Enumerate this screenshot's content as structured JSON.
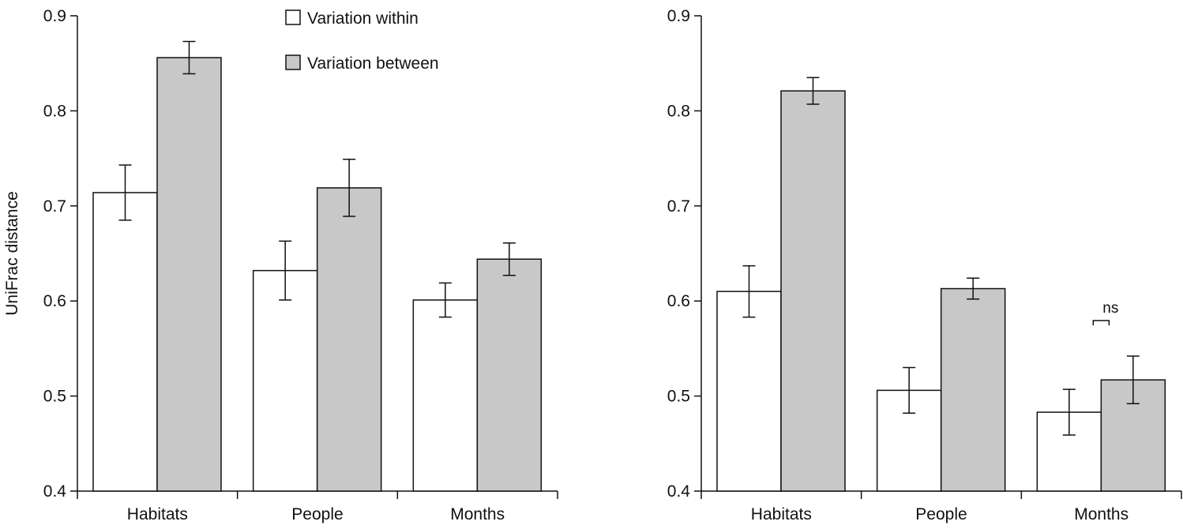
{
  "chart_data": [
    {
      "type": "bar",
      "categories": [
        "Habitats",
        "People",
        "Months"
      ],
      "series": [
        {
          "name": "Variation within",
          "values": [
            0.714,
            0.632,
            0.601
          ],
          "errors": [
            0.029,
            0.031,
            0.018
          ]
        },
        {
          "name": "Variation between",
          "values": [
            0.856,
            0.719,
            0.644
          ],
          "errors": [
            0.017,
            0.03,
            0.017
          ]
        }
      ],
      "ylabel": "UniFrac distance",
      "ylim": [
        0.4,
        0.9
      ],
      "yticks": [
        "0.4",
        "0.5",
        "0.6",
        "0.7",
        "0.8",
        "0.9"
      ],
      "legend": "top-right",
      "grid": false
    },
    {
      "type": "bar",
      "categories": [
        "Habitats",
        "People",
        "Months"
      ],
      "series": [
        {
          "name": "Variation within",
          "values": [
            0.61,
            0.506,
            0.483
          ],
          "errors": [
            0.027,
            0.024,
            0.024
          ]
        },
        {
          "name": "Variation between",
          "values": [
            0.821,
            0.613,
            0.517
          ],
          "errors": [
            0.014,
            0.011,
            0.025
          ]
        }
      ],
      "ylim": [
        0.4,
        0.9
      ],
      "yticks": [
        "0.4",
        "0.5",
        "0.6",
        "0.7",
        "0.8",
        "0.9"
      ],
      "annotations": [
        {
          "text": "ns",
          "category": "Months"
        }
      ],
      "grid": false
    }
  ],
  "colors": {
    "within": "#ffffff",
    "between": "#c8c8c8",
    "stroke": "#111111"
  }
}
